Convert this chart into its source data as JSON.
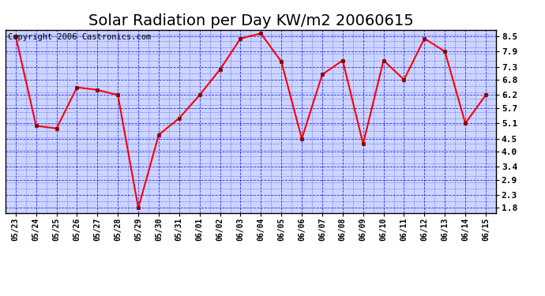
{
  "title": "Solar Radiation per Day KW/m2 20060615",
  "copyright_text": "Copyright 2006 Castronics.com",
  "dates": [
    "05/23",
    "05/24",
    "05/25",
    "05/26",
    "05/27",
    "05/28",
    "05/29",
    "05/30",
    "05/31",
    "06/01",
    "06/02",
    "06/03",
    "06/04",
    "06/05",
    "06/06",
    "06/07",
    "06/08",
    "06/09",
    "06/10",
    "06/11",
    "06/12",
    "06/13",
    "06/14",
    "06/15"
  ],
  "values": [
    8.5,
    5.0,
    4.9,
    6.5,
    6.4,
    6.2,
    1.8,
    4.65,
    5.3,
    6.2,
    7.2,
    8.4,
    8.6,
    7.5,
    4.5,
    7.0,
    7.55,
    4.3,
    7.55,
    6.8,
    8.4,
    7.9,
    5.1,
    6.2
  ],
  "line_color": "#ff0000",
  "marker_color": "#880000",
  "bg_color": "#ffffff",
  "plot_bg_color": "#ccd5ff",
  "grid_color": "#0000ff",
  "yticks": [
    1.8,
    2.3,
    2.9,
    3.4,
    4.0,
    4.5,
    5.1,
    5.7,
    6.2,
    6.8,
    7.3,
    7.9,
    8.5
  ],
  "ylim": [
    1.6,
    8.75
  ],
  "title_fontsize": 14,
  "copyright_fontsize": 7.5,
  "tick_fontsize": 8,
  "xtick_fontsize": 7
}
